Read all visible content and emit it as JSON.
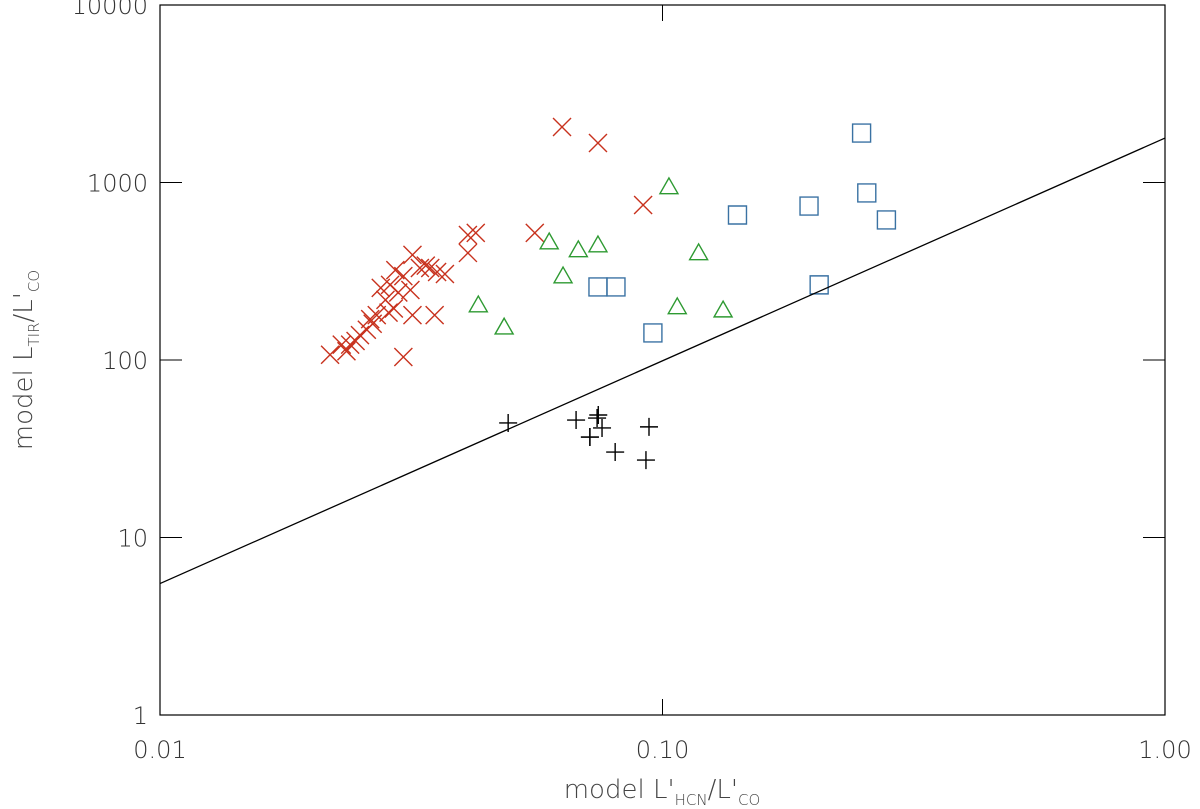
{
  "chart_data": {
    "type": "scatter",
    "xscale": "log",
    "yscale": "log",
    "xlim": [
      0.01,
      1.0
    ],
    "ylim": [
      1,
      10000
    ],
    "xticks": [
      {
        "value": 0.01,
        "label": "0.01"
      },
      {
        "value": 0.1,
        "label": "0.10"
      },
      {
        "value": 1.0,
        "label": "1.00"
      }
    ],
    "yticks": [
      1,
      10,
      100,
      1000,
      10000
    ],
    "xlabel": [
      "model L'",
      "HCN",
      "/L'",
      "CO"
    ],
    "ylabel": [
      "model L",
      "TIR",
      "/L'",
      "CO"
    ],
    "series": [
      {
        "marker": "x",
        "color": "#c8321e",
        "x": [
          0.0631,
          0.0744,
          0.0915,
          0.0557,
          0.041,
          0.0425,
          0.041,
          0.0318,
          0.0345,
          0.0305,
          0.0329,
          0.0356,
          0.0369,
          0.0315,
          0.0294,
          0.0281,
          0.027,
          0.0258,
          0.025,
          0.0239,
          0.023,
          0.0218,
          0.0287,
          0.0305,
          0.0318,
          0.0352,
          0.0338,
          0.0298,
          0.0275,
          0.0262,
          0.0245,
          0.0292,
          0.0285,
          0.0265,
          0.0235
        ],
        "values": [
          2055,
          1670,
          747,
          520,
          506,
          520,
          401,
          391,
          330,
          297,
          330,
          313,
          305,
          248,
          321,
          218,
          179,
          148,
          138,
          122,
          122,
          107,
          265,
          104,
          179,
          179,
          340,
          240,
          255,
          170,
          128,
          195,
          185,
          160,
          112
        ]
      },
      {
        "marker": "triangle",
        "color": "#2e9a32",
        "x": [
          0.103,
          0.0595,
          0.068,
          0.0744,
          0.0634,
          0.043,
          0.0484,
          0.118,
          0.107,
          0.132
        ],
        "values": [
          944,
          462,
          417,
          444,
          297,
          204,
          153,
          401,
          199,
          191
        ]
      },
      {
        "marker": "square",
        "color": "#3a72a3",
        "x": [
          0.249,
          0.255,
          0.279,
          0.1957,
          0.141,
          0.205,
          0.0744,
          0.0808,
          0.0957
        ],
        "values": [
          1900,
          873,
          615,
          737,
          656,
          265,
          258,
          258,
          142
        ]
      },
      {
        "marker": "plus",
        "color": "#000000",
        "x": [
          0.0493,
          0.0673,
          0.0741,
          0.0745,
          0.0717,
          0.0758,
          0.0805,
          0.0927,
          0.094,
          0.0717
        ],
        "values": [
          44.2,
          45.9,
          47.1,
          49,
          36.8,
          41.4,
          30.3,
          27.3,
          42,
          36.8
        ]
      },
      {
        "marker": "line",
        "color": "#000000",
        "x": [
          0.01,
          1.0
        ],
        "values": [
          5.5,
          1780
        ]
      }
    ]
  }
}
